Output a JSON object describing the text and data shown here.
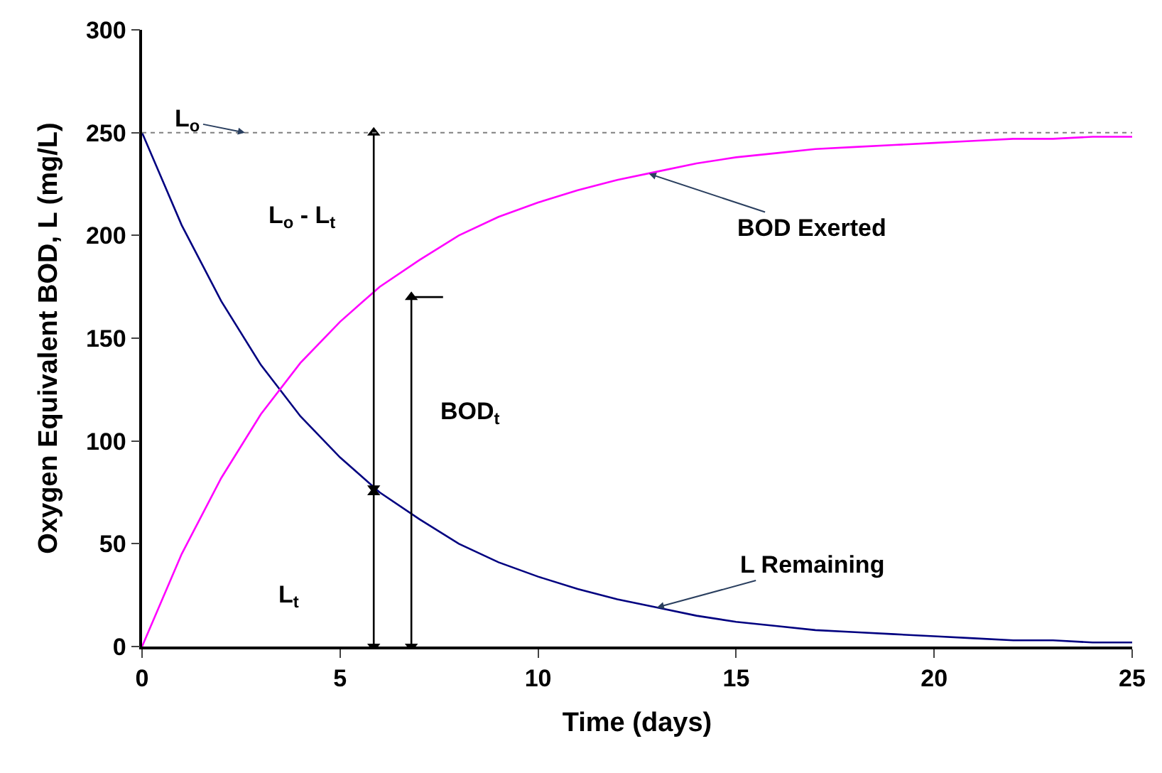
{
  "chart_data": {
    "type": "line",
    "xlabel": "Time (days)",
    "ylabel": "Oxygen Equivalent BOD, L (mg/L)",
    "x": [
      0,
      1,
      2,
      3,
      4,
      5,
      6,
      7,
      8,
      9,
      10,
      11,
      12,
      13,
      14,
      15,
      16,
      17,
      18,
      19,
      20,
      21,
      22,
      23,
      24,
      25
    ],
    "series": [
      {
        "color": "#000080",
        "values": [
          250,
          205,
          168,
          137,
          112,
          92,
          75,
          62,
          50,
          41,
          34,
          28,
          23,
          19,
          15,
          12,
          10,
          8,
          7,
          6,
          5,
          4,
          3,
          3,
          2,
          2
        ]
      },
      {
        "color": "#ff00ff",
        "values": [
          0,
          45,
          82,
          113,
          138,
          158,
          175,
          188,
          200,
          209,
          216,
          222,
          227,
          231,
          235,
          238,
          240,
          242,
          243,
          244,
          245,
          246,
          247,
          247,
          248,
          248
        ]
      },
      {
        "color": "#000000",
        "x": [
          5.85,
          5.85
        ],
        "values": [
          0,
          75
        ],
        "marker": "triangle"
      },
      {
        "color": "#000000",
        "x": [
          5.85,
          5.85
        ],
        "values": [
          77,
          250
        ],
        "marker": "triangle"
      },
      {
        "color": "#000000",
        "x": [
          6.8,
          6.8
        ],
        "values": [
          0,
          170
        ],
        "marker": "triangle"
      },
      {
        "color": "#000000",
        "x": [
          6.8,
          7.6
        ],
        "values": [
          170,
          170
        ]
      }
    ],
    "ref_lines": [
      {
        "axis": "y",
        "value": 250,
        "color": "#808080",
        "line_style": "dotted"
      }
    ],
    "annotations": [
      {
        "text": "L$_{o}$",
        "x": 2.6,
        "y": 250
      },
      {
        "text": "BOD Exerted",
        "x": 12.8,
        "y": 230
      },
      {
        "text": "L Remaining",
        "x": 13,
        "y": 19
      },
      "L$_{o}$ - L$_{t}$",
      "BOD$_{t}$",
      "L$_{t}$"
    ],
    "xlim": [
      0,
      25
    ],
    "xticks": [
      0,
      5,
      10,
      15,
      20,
      25
    ],
    "ylim": [
      0,
      300
    ],
    "yticks": [
      0,
      50,
      100,
      150,
      200,
      250,
      300
    ],
    "marker": "none",
    "line_style": "solid"
  }
}
